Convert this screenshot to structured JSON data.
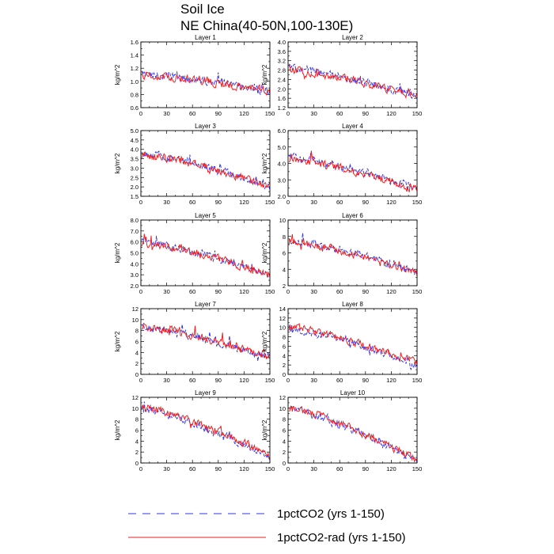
{
  "figure": {
    "title_line1": "Soil Ice",
    "title_line2": "NE China(40-50N,100-130E)",
    "legend": [
      {
        "label": "1pctCO2 (yrs 1-150)",
        "color": "#3333ee",
        "style": "dashed"
      },
      {
        "label": "1pctCO2-rad (yrs 1-150)",
        "color": "#ee2222",
        "style": "solid"
      }
    ]
  },
  "chart_data": [
    {
      "type": "line",
      "title": "Layer 1",
      "ylabel": "kg/m^2",
      "xlim": [
        0,
        150
      ],
      "ylim": [
        0.6,
        1.6
      ],
      "xticks": [
        "0",
        "30",
        "60",
        "90",
        "120",
        "150"
      ],
      "yticks": [
        "0.6",
        "0.8",
        "1.0",
        "1.2",
        "1.4",
        "1.6"
      ],
      "series": [
        {
          "values_start": 1.12,
          "values_end": 0.85
        },
        {
          "values_start": 1.1,
          "values_end": 0.85
        }
      ]
    },
    {
      "type": "line",
      "title": "Layer 2",
      "ylabel": "kg/m^2",
      "xlim": [
        0,
        150
      ],
      "ylim": [
        1.2,
        4.0
      ],
      "xticks": [
        "0",
        "30",
        "60",
        "90",
        "120",
        "150"
      ],
      "yticks": [
        "1.2",
        "1.6",
        "2.0",
        "2.4",
        "2.8",
        "3.2",
        "3.6",
        "4.0"
      ],
      "series": [
        {
          "values_start": 2.9,
          "values_end": 1.7
        },
        {
          "values_start": 2.8,
          "values_end": 1.7
        }
      ]
    },
    {
      "type": "line",
      "title": "Layer 3",
      "ylabel": "kg/m^2",
      "xlim": [
        0,
        150
      ],
      "ylim": [
        1.5,
        5.0
      ],
      "xticks": [
        "0",
        "30",
        "60",
        "90",
        "120",
        "150"
      ],
      "yticks": [
        "1.5",
        "2.0",
        "2.5",
        "3.0",
        "3.5",
        "4.0",
        "4.5",
        "5.0"
      ],
      "series": [
        {
          "values_start": 3.8,
          "values_end": 2.0
        },
        {
          "values_start": 3.7,
          "values_end": 2.0
        }
      ]
    },
    {
      "type": "line",
      "title": "Layer 4",
      "ylabel": "kg/m^2",
      "xlim": [
        0,
        150
      ],
      "ylim": [
        2.0,
        6.0
      ],
      "xticks": [
        "0",
        "30",
        "60",
        "90",
        "120",
        "150"
      ],
      "yticks": [
        "2.0",
        "3.0",
        "4.0",
        "5.0",
        "6.0"
      ],
      "series": [
        {
          "values_start": 4.4,
          "values_end": 2.4
        },
        {
          "values_start": 4.3,
          "values_end": 2.4
        }
      ]
    },
    {
      "type": "line",
      "title": "Layer 5",
      "ylabel": "kg/m^2",
      "xlim": [
        0,
        150
      ],
      "ylim": [
        2.0,
        8.0
      ],
      "xticks": [
        "0",
        "30",
        "60",
        "90",
        "120",
        "150"
      ],
      "yticks": [
        "2.0",
        "3.0",
        "4.0",
        "5.0",
        "6.0",
        "7.0",
        "8.0"
      ],
      "series": [
        {
          "values_start": 6.0,
          "values_end": 3.0
        },
        {
          "values_start": 5.9,
          "values_end": 3.0
        }
      ]
    },
    {
      "type": "line",
      "title": "Layer 6",
      "ylabel": "kg/m^2",
      "xlim": [
        0,
        150
      ],
      "ylim": [
        2,
        10
      ],
      "xticks": [
        "0",
        "30",
        "60",
        "90",
        "120",
        "150"
      ],
      "yticks": [
        "2",
        "4",
        "6",
        "8",
        "10"
      ],
      "series": [
        {
          "values_start": 7.6,
          "values_end": 3.5
        },
        {
          "values_start": 7.4,
          "values_end": 3.5
        }
      ]
    },
    {
      "type": "line",
      "title": "Layer 7",
      "ylabel": "kg/m^2",
      "xlim": [
        0,
        150
      ],
      "ylim": [
        0,
        12
      ],
      "xticks": [
        "0",
        "30",
        "60",
        "90",
        "120",
        "150"
      ],
      "yticks": [
        "0",
        "2",
        "4",
        "6",
        "8",
        "10",
        "12"
      ],
      "series": [
        {
          "values_start": 8.8,
          "values_end": 3.0
        },
        {
          "values_start": 8.8,
          "values_end": 3.2
        }
      ]
    },
    {
      "type": "line",
      "title": "Layer 8",
      "ylabel": "kg/m^2",
      "xlim": [
        0,
        150
      ],
      "ylim": [
        0,
        14
      ],
      "xticks": [
        "0",
        "30",
        "60",
        "90",
        "120",
        "150"
      ],
      "yticks": [
        "0",
        "2",
        "4",
        "6",
        "8",
        "10",
        "12",
        "14"
      ],
      "series": [
        {
          "values_start": 9.8,
          "values_end": 2.0
        },
        {
          "values_start": 10.0,
          "values_end": 2.5
        }
      ]
    },
    {
      "type": "line",
      "title": "Layer 9",
      "ylabel": "kg/m^2",
      "xlim": [
        0,
        150
      ],
      "ylim": [
        0,
        12
      ],
      "xticks": [
        "0",
        "30",
        "60",
        "90",
        "120",
        "150"
      ],
      "yticks": [
        "0",
        "2",
        "4",
        "6",
        "8",
        "10",
        "12"
      ],
      "series": [
        {
          "values_start": 10.0,
          "values_end": 1.0
        },
        {
          "values_start": 10.2,
          "values_end": 1.4
        }
      ]
    },
    {
      "type": "line",
      "title": "Layer 10",
      "ylabel": "kg/m^2",
      "xlim": [
        0,
        150
      ],
      "ylim": [
        0,
        12
      ],
      "xticks": [
        "0",
        "30",
        "60",
        "90",
        "120",
        "150"
      ],
      "yticks": [
        "0",
        "2",
        "4",
        "6",
        "8",
        "10",
        "12"
      ],
      "series": [
        {
          "values_start": 9.8,
          "values_end": 0.3
        },
        {
          "values_start": 10.0,
          "values_end": 0.6
        }
      ]
    }
  ]
}
